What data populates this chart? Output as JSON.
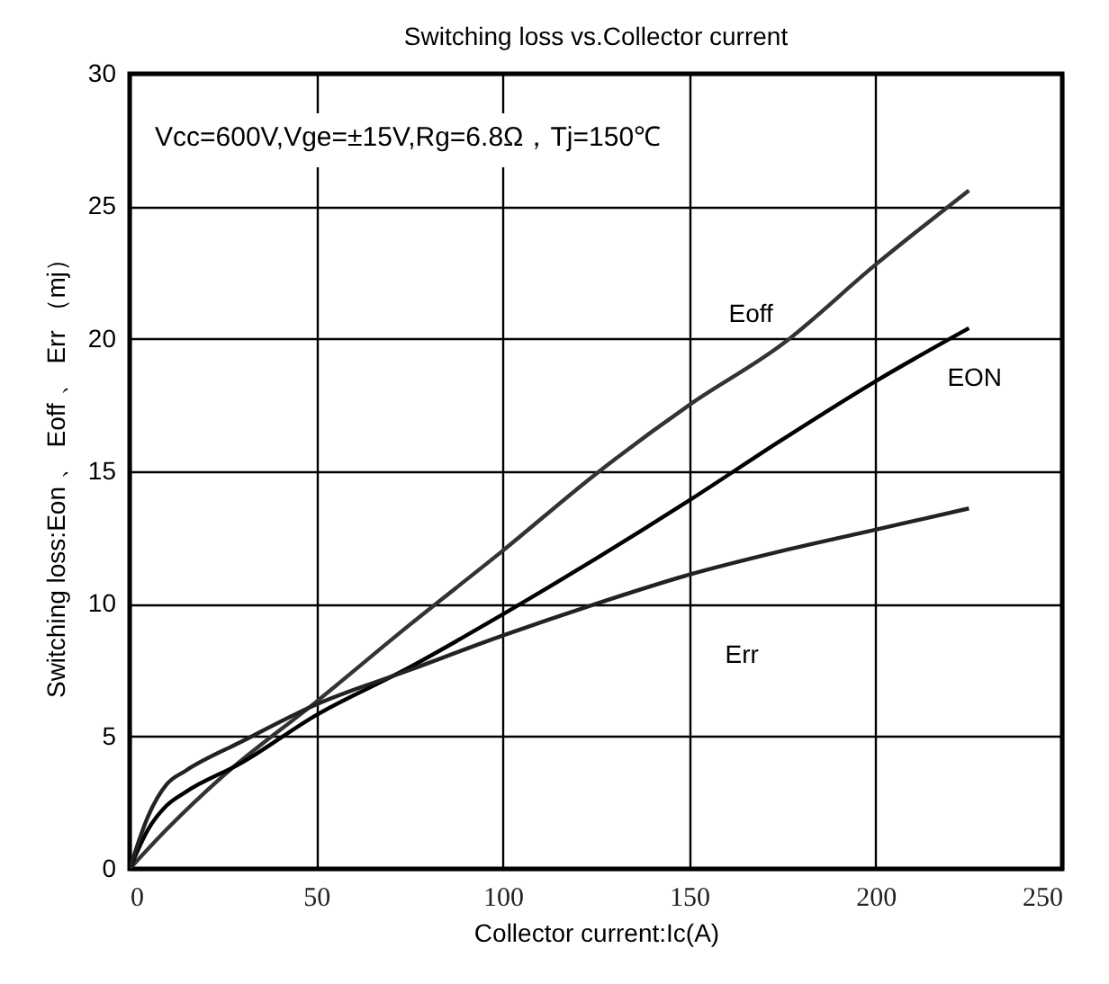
{
  "chart_data": {
    "type": "line",
    "title": "Switching loss vs.Collector current",
    "xlabel": "Collector current:Ic(A)",
    "ylabel": "Switching loss:Eon 、 Eoff 、 Err （mj）",
    "annotations": [
      "Vcc=600V,Vge=±15V,Rg=6.8Ω，Tj=150℃"
    ],
    "xlim": [
      0,
      250
    ],
    "xticks": [
      0,
      50,
      100,
      150,
      200,
      250
    ],
    "ylim": [
      0,
      30
    ],
    "yticks": [
      0,
      5,
      10,
      15,
      20,
      25,
      30
    ],
    "grid": true,
    "line_style": "solid",
    "series": [
      {
        "name": "Eoff",
        "color": "#333333",
        "x": [
          0,
          10,
          25,
          50,
          75,
          100,
          125,
          150,
          175,
          200,
          225
        ],
        "values": [
          0,
          1.5,
          3.5,
          6.3,
          9.2,
          12,
          14.9,
          17.5,
          19.8,
          22.8,
          25.6
        ]
      },
      {
        "name": "EON",
        "color": "#000000",
        "x": [
          0,
          5,
          10,
          15,
          30,
          50,
          75,
          100,
          125,
          150,
          175,
          200,
          225
        ],
        "values": [
          0,
          1.5,
          2.4,
          2.9,
          4,
          5.8,
          7.6,
          9.6,
          11.7,
          13.9,
          16.2,
          18.4,
          20.4
        ]
      },
      {
        "name": "Err",
        "color": "#222222",
        "x": [
          0,
          5,
          10,
          15,
          30,
          50,
          75,
          100,
          125,
          150,
          175,
          200,
          225
        ],
        "values": [
          0,
          2,
          3.2,
          3.7,
          4.8,
          6.2,
          7.5,
          8.8,
          10,
          11.1,
          12,
          12.8,
          13.6
        ]
      }
    ]
  }
}
